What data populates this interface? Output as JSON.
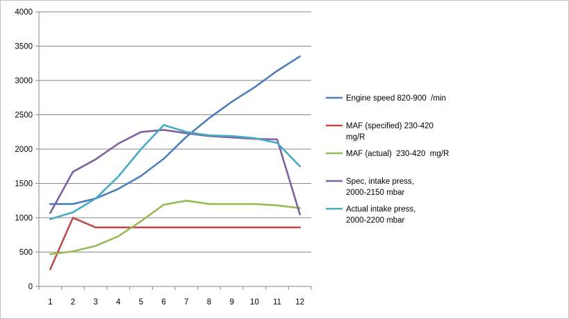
{
  "chart_data": {
    "type": "line",
    "title": "",
    "xlabel": "",
    "ylabel": "",
    "categories": [
      "1",
      "2",
      "3",
      "4",
      "5",
      "6",
      "7",
      "8",
      "9",
      "10",
      "11",
      "12"
    ],
    "ylim": [
      0,
      4000
    ],
    "yticks": [
      0,
      500,
      1000,
      1500,
      2000,
      2500,
      3000,
      3500,
      4000
    ],
    "grid": "horizontal",
    "legend_position": "right",
    "series": [
      {
        "name": "Engine speed 820-900  /min",
        "color": "#4a7ebb",
        "values": [
          1200,
          1200,
          1280,
          1420,
          1610,
          1860,
          2180,
          2450,
          2690,
          2900,
          3140,
          3350
        ]
      },
      {
        "name": "MAF (specified) 230-420  mg/R",
        "color": "#be4b48",
        "values": [
          250,
          1000,
          860,
          860,
          860,
          860,
          860,
          860,
          860,
          860,
          860,
          860
        ]
      },
      {
        "name": "MAF (actual)  230-420  mg/R",
        "color": "#98b954",
        "values": [
          470,
          510,
          590,
          730,
          950,
          1190,
          1250,
          1200,
          1200,
          1200,
          1180,
          1140
        ]
      },
      {
        "name": "Spec, intake press, 2000-2150 mbar",
        "color": "#7d60a0",
        "values": [
          1070,
          1670,
          1850,
          2080,
          2250,
          2280,
          2230,
          2190,
          2170,
          2150,
          2140,
          1050
        ]
      },
      {
        "name": "Actual intake press, 2000-2200 mbar",
        "color": "#46aac5",
        "values": [
          980,
          1080,
          1280,
          1600,
          2000,
          2350,
          2250,
          2200,
          2190,
          2160,
          2090,
          1750
        ]
      }
    ]
  }
}
